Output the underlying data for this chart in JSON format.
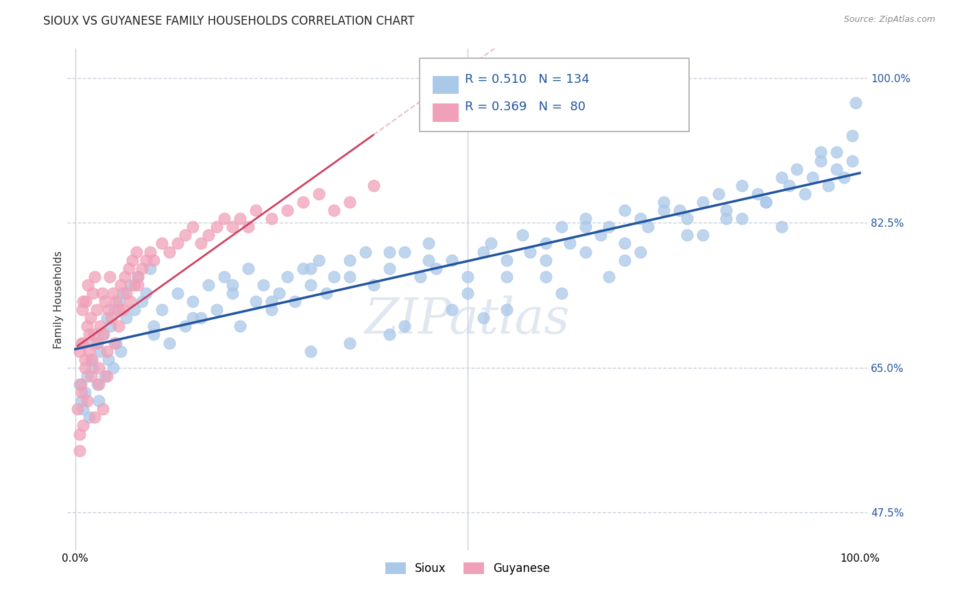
{
  "title": "SIOUX VS GUYANESE FAMILY HOUSEHOLDS CORRELATION CHART",
  "source": "Source: ZipAtlas.com",
  "ylabel": "Family Households",
  "sioux_R": 0.51,
  "sioux_N": 134,
  "guyanese_R": 0.369,
  "guyanese_N": 80,
  "sioux_color": "#aac8e8",
  "sioux_line_color": "#2255a0",
  "guyanese_color": "#f0a0b8",
  "guyanese_line_color": "#d04060",
  "guyanese_dash_color": "#e8a0b0",
  "background_color": "#ffffff",
  "grid_color": "#c8d0dc",
  "xlim": [
    -0.01,
    1.01
  ],
  "ylim": [
    0.43,
    1.035
  ],
  "yticks": [
    0.475,
    0.65,
    0.825,
    1.0
  ],
  "ytick_labels": [
    "47.5%",
    "65.0%",
    "82.5%",
    "100.0%"
  ],
  "title_fontsize": 12,
  "axis_label_fontsize": 11,
  "tick_fontsize": 11,
  "legend_fontsize": 13,
  "watermark_color": "#ccd8e8",
  "watermark_alpha": 0.6,
  "sioux_x": [
    0.005,
    0.008,
    0.01,
    0.012,
    0.015,
    0.018,
    0.02,
    0.022,
    0.025,
    0.028,
    0.03,
    0.032,
    0.035,
    0.038,
    0.04,
    0.042,
    0.045,
    0.048,
    0.05,
    0.052,
    0.055,
    0.058,
    0.06,
    0.065,
    0.07,
    0.075,
    0.08,
    0.085,
    0.09,
    0.095,
    0.1,
    0.11,
    0.12,
    0.13,
    0.14,
    0.15,
    0.16,
    0.17,
    0.18,
    0.19,
    0.2,
    0.21,
    0.22,
    0.23,
    0.24,
    0.25,
    0.26,
    0.27,
    0.28,
    0.29,
    0.3,
    0.31,
    0.32,
    0.33,
    0.35,
    0.37,
    0.38,
    0.4,
    0.42,
    0.44,
    0.45,
    0.46,
    0.48,
    0.5,
    0.52,
    0.53,
    0.55,
    0.57,
    0.58,
    0.6,
    0.62,
    0.63,
    0.65,
    0.67,
    0.68,
    0.7,
    0.72,
    0.73,
    0.75,
    0.77,
    0.78,
    0.8,
    0.82,
    0.83,
    0.85,
    0.87,
    0.88,
    0.9,
    0.91,
    0.92,
    0.93,
    0.94,
    0.95,
    0.96,
    0.97,
    0.97,
    0.98,
    0.99,
    0.99,
    0.995,
    0.1,
    0.2,
    0.3,
    0.4,
    0.5,
    0.6,
    0.7,
    0.8,
    0.25,
    0.35,
    0.15,
    0.45,
    0.55,
    0.65,
    0.75,
    0.85,
    0.55,
    0.62,
    0.68,
    0.72,
    0.78,
    0.83,
    0.88,
    0.35,
    0.42,
    0.48,
    0.65,
    0.9,
    0.95,
    0.3,
    0.4,
    0.52,
    0.6,
    0.7
  ],
  "sioux_y": [
    0.63,
    0.61,
    0.6,
    0.62,
    0.64,
    0.59,
    0.66,
    0.65,
    0.68,
    0.63,
    0.61,
    0.67,
    0.69,
    0.64,
    0.71,
    0.66,
    0.7,
    0.65,
    0.72,
    0.68,
    0.73,
    0.67,
    0.74,
    0.71,
    0.75,
    0.72,
    0.76,
    0.73,
    0.74,
    0.77,
    0.69,
    0.72,
    0.68,
    0.74,
    0.7,
    0.73,
    0.71,
    0.75,
    0.72,
    0.76,
    0.74,
    0.7,
    0.77,
    0.73,
    0.75,
    0.72,
    0.74,
    0.76,
    0.73,
    0.77,
    0.75,
    0.78,
    0.74,
    0.76,
    0.78,
    0.79,
    0.75,
    0.77,
    0.79,
    0.76,
    0.8,
    0.77,
    0.78,
    0.76,
    0.79,
    0.8,
    0.78,
    0.81,
    0.79,
    0.8,
    0.82,
    0.8,
    0.83,
    0.81,
    0.82,
    0.84,
    0.83,
    0.82,
    0.85,
    0.84,
    0.83,
    0.85,
    0.86,
    0.84,
    0.87,
    0.86,
    0.85,
    0.88,
    0.87,
    0.89,
    0.86,
    0.88,
    0.9,
    0.87,
    0.89,
    0.91,
    0.88,
    0.9,
    0.93,
    0.97,
    0.7,
    0.75,
    0.77,
    0.79,
    0.74,
    0.78,
    0.8,
    0.81,
    0.73,
    0.76,
    0.71,
    0.78,
    0.76,
    0.82,
    0.84,
    0.83,
    0.72,
    0.74,
    0.76,
    0.79,
    0.81,
    0.83,
    0.85,
    0.68,
    0.7,
    0.72,
    0.79,
    0.82,
    0.91,
    0.67,
    0.69,
    0.71,
    0.76,
    0.78
  ],
  "guyanese_x": [
    0.003,
    0.005,
    0.007,
    0.009,
    0.01,
    0.012,
    0.013,
    0.015,
    0.016,
    0.018,
    0.019,
    0.021,
    0.022,
    0.024,
    0.025,
    0.027,
    0.028,
    0.03,
    0.032,
    0.034,
    0.036,
    0.038,
    0.04,
    0.042,
    0.044,
    0.046,
    0.048,
    0.05,
    0.052,
    0.055,
    0.058,
    0.06,
    0.063,
    0.065,
    0.068,
    0.07,
    0.073,
    0.075,
    0.078,
    0.08,
    0.085,
    0.09,
    0.095,
    0.1,
    0.11,
    0.12,
    0.13,
    0.14,
    0.15,
    0.16,
    0.17,
    0.18,
    0.19,
    0.2,
    0.21,
    0.22,
    0.23,
    0.25,
    0.27,
    0.29,
    0.31,
    0.33,
    0.35,
    0.38,
    0.005,
    0.008,
    0.01,
    0.012,
    0.015,
    0.018,
    0.02,
    0.025,
    0.03,
    0.035,
    0.04,
    0.005,
    0.008,
    0.01,
    0.055,
    0.08
  ],
  "guyanese_y": [
    0.6,
    0.67,
    0.63,
    0.72,
    0.68,
    0.65,
    0.73,
    0.7,
    0.75,
    0.67,
    0.71,
    0.66,
    0.74,
    0.69,
    0.76,
    0.72,
    0.68,
    0.65,
    0.7,
    0.74,
    0.69,
    0.73,
    0.67,
    0.72,
    0.76,
    0.71,
    0.74,
    0.68,
    0.73,
    0.7,
    0.75,
    0.72,
    0.76,
    0.74,
    0.77,
    0.73,
    0.78,
    0.75,
    0.79,
    0.76,
    0.77,
    0.78,
    0.79,
    0.78,
    0.8,
    0.79,
    0.8,
    0.81,
    0.82,
    0.8,
    0.81,
    0.82,
    0.83,
    0.82,
    0.83,
    0.82,
    0.84,
    0.83,
    0.84,
    0.85,
    0.86,
    0.84,
    0.85,
    0.87,
    0.57,
    0.62,
    0.58,
    0.66,
    0.61,
    0.69,
    0.64,
    0.59,
    0.63,
    0.6,
    0.64,
    0.55,
    0.68,
    0.73,
    0.72,
    0.75
  ]
}
